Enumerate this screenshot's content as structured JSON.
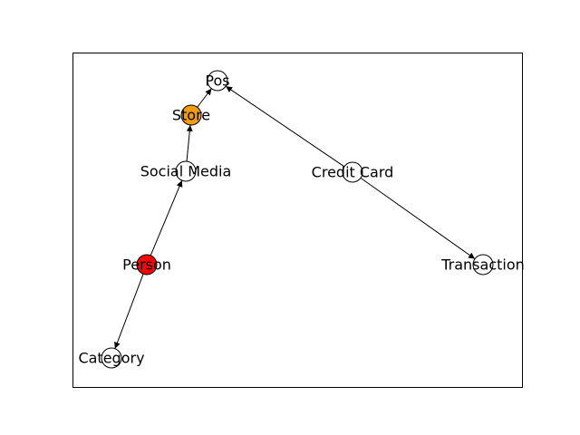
{
  "graph": {
    "directed": true,
    "nodes": [
      {
        "id": "pos",
        "label": "Pos",
        "color": "#ffffff"
      },
      {
        "id": "store",
        "label": "Store",
        "color": "#f39c12"
      },
      {
        "id": "social",
        "label": "Social Media",
        "color": "#ffffff"
      },
      {
        "id": "credit",
        "label": "Credit Card",
        "color": "#ffffff"
      },
      {
        "id": "person",
        "label": "Person",
        "color": "#ff0000"
      },
      {
        "id": "transaction",
        "label": "Transaction",
        "color": "#ffffff"
      },
      {
        "id": "category",
        "label": "Category",
        "color": "#ffffff"
      }
    ],
    "edges": [
      {
        "from": "store",
        "to": "pos"
      },
      {
        "from": "social",
        "to": "store"
      },
      {
        "from": "person",
        "to": "social"
      },
      {
        "from": "person",
        "to": "category"
      },
      {
        "from": "credit",
        "to": "pos"
      },
      {
        "from": "credit",
        "to": "transaction"
      }
    ],
    "edge_color": "#000000",
    "node_stroke_color": "#000000",
    "frame_color": "#000000"
  }
}
